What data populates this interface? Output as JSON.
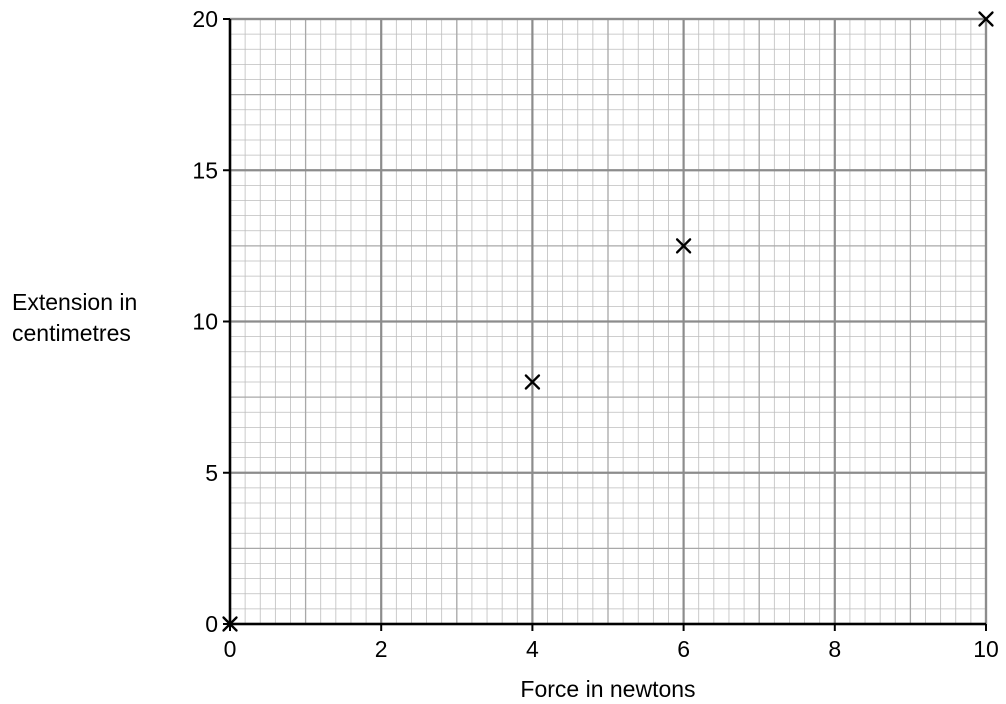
{
  "chart_data": {
    "type": "scatter",
    "title": "",
    "xlabel": "Force in newtons",
    "ylabel": [
      "Extension in",
      "centimetres"
    ],
    "xlim": [
      0,
      10
    ],
    "ylim": [
      0,
      20
    ],
    "x_ticks": [
      0,
      2,
      4,
      6,
      8,
      10
    ],
    "y_ticks": [
      0,
      5,
      10,
      15,
      20
    ],
    "minor_grid_step_x": 0.2,
    "minor_grid_step_y": 0.5,
    "medium_grid_step_x": 1,
    "medium_grid_step_y": 2.5,
    "major_grid_step_x": 2,
    "major_grid_step_y": 5,
    "grid": true,
    "marker": "x",
    "series": [
      {
        "points": [
          {
            "x": 0,
            "y": 0
          },
          {
            "x": 4,
            "y": 8
          },
          {
            "x": 6,
            "y": 12.5
          },
          {
            "x": 10,
            "y": 20
          }
        ]
      }
    ],
    "colors": {
      "minor_grid": "#bdbdbd",
      "medium_grid": "#a8a8a8",
      "major_grid": "#8c8c8c",
      "axis": "#000000",
      "marker": "#000000"
    }
  }
}
